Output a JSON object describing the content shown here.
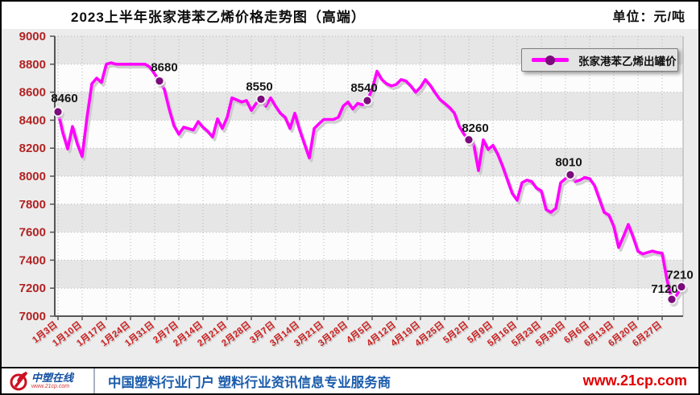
{
  "header": {
    "title": "2023上半年张家港苯乙烯价格走势图（高端）",
    "unit_label": "单位：元/吨"
  },
  "legend": {
    "label": "张家港苯乙烯出罐价"
  },
  "footer": {
    "logo_name": "中塑在线",
    "logo_url": "www.21cp.com",
    "tagline": "中国塑料行业门户 塑料行业资讯信息专业服务商",
    "site_url": "www.21cp.com"
  },
  "chart_data": {
    "type": "line",
    "title": "2023上半年张家港苯乙烯价格走势图（高端）",
    "unit": "元/吨",
    "ylabel": "",
    "xlabel": "",
    "ylim": [
      7000,
      9000
    ],
    "y_ticks": [
      9000,
      8800,
      8600,
      8400,
      8200,
      8000,
      7800,
      7600,
      7400,
      7200,
      7000
    ],
    "grid": "dotted",
    "legend_position": "top-right",
    "x_tick_labels": [
      "1月3日",
      "1月10日",
      "1月17日",
      "1月24日",
      "1月31日",
      "2月7日",
      "2月14日",
      "2月21日",
      "2月28日",
      "3月7日",
      "3月14日",
      "3月21日",
      "3月28日",
      "4月5日",
      "4月12日",
      "4月19日",
      "4月25日",
      "5月2日",
      "5月9日",
      "5月16日",
      "5月23日",
      "5月30日",
      "6月6日",
      "6月13日",
      "6月20日",
      "6月27日"
    ],
    "points_per_tick": 5,
    "series": [
      {
        "name": "张家港苯乙烯出罐价",
        "color": "#ff00ff",
        "values": [
          8460,
          8310,
          8195,
          8355,
          8230,
          8140,
          8420,
          8660,
          8700,
          8670,
          8800,
          8810,
          8800,
          8800,
          8800,
          8800,
          8800,
          8800,
          8800,
          8780,
          8730,
          8680,
          8620,
          8480,
          8360,
          8300,
          8350,
          8340,
          8330,
          8390,
          8350,
          8320,
          8280,
          8410,
          8340,
          8420,
          8560,
          8545,
          8530,
          8540,
          8470,
          8520,
          8550,
          8500,
          8560,
          8500,
          8450,
          8420,
          8340,
          8450,
          8330,
          8230,
          8130,
          8340,
          8375,
          8405,
          8405,
          8405,
          8420,
          8500,
          8530,
          8480,
          8520,
          8510,
          8540,
          8620,
          8750,
          8690,
          8660,
          8645,
          8655,
          8690,
          8680,
          8645,
          8600,
          8635,
          8690,
          8650,
          8597,
          8549,
          8520,
          8491,
          8452,
          8356,
          8300,
          8260,
          8230,
          8040,
          8260,
          8190,
          8220,
          8155,
          8070,
          7972,
          7876,
          7828,
          7953,
          7972,
          7962,
          7915,
          7895,
          7761,
          7742,
          7770,
          7953,
          7982,
          8010,
          7962,
          7972,
          7991,
          7982,
          7934,
          7838,
          7742,
          7722,
          7640,
          7490,
          7570,
          7655,
          7565,
          7463,
          7444,
          7455,
          7465,
          7455,
          7450,
          7260,
          7120,
          7150,
          7210
        ]
      }
    ],
    "markers": [
      {
        "index": 0,
        "label": "8460"
      },
      {
        "index": 21,
        "label": "8680"
      },
      {
        "index": 42,
        "label": "8550"
      },
      {
        "index": 64,
        "label": "8540"
      },
      {
        "index": 85,
        "label": "8260"
      },
      {
        "index": 106,
        "label": "8010"
      },
      {
        "index": 127,
        "label": "7120"
      },
      {
        "index": 129,
        "label": "7210"
      }
    ],
    "colors": {
      "line": "#ff00ff",
      "dot": "#7c0c7c",
      "grid": "#b4b4b4",
      "band_gray": "#e6e6e6",
      "band_light": "#fcfcfc",
      "axis": "#555555",
      "y_label": "#b22222",
      "x_label": "#cc2222",
      "value_label": "#151515",
      "shadow": "#c2c2c2"
    }
  }
}
